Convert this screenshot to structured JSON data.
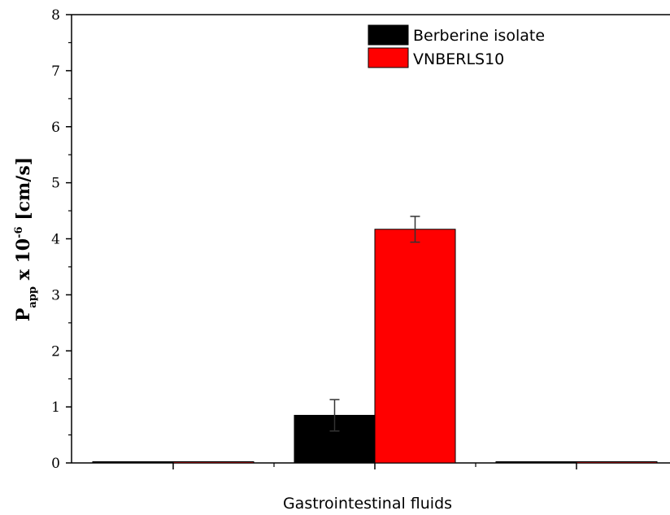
{
  "chart_data": {
    "type": "bar",
    "xlabel": "Gastrointestinal fluids",
    "ylabel": {
      "main": "P",
      "sub": "app",
      "rest": " x 10",
      "sup": "-6",
      "unit": " [cm/s]"
    },
    "ylim": [
      0,
      8
    ],
    "yticks": [
      "0",
      "1",
      "2",
      "3",
      "4",
      "5",
      "6",
      "7",
      "8"
    ],
    "legend_position": "top-right",
    "grid": false,
    "groups": [
      "",
      "",
      ""
    ],
    "series": [
      {
        "name": "Berberine isolate",
        "color": "#000000",
        "values": [
          0,
          0.85,
          0
        ],
        "errors": [
          0,
          0.28,
          0
        ]
      },
      {
        "name": "VNBERLS10",
        "color": "#ff0000",
        "values": [
          0,
          4.17,
          0
        ],
        "errors": [
          0,
          0.23,
          0
        ]
      }
    ]
  }
}
